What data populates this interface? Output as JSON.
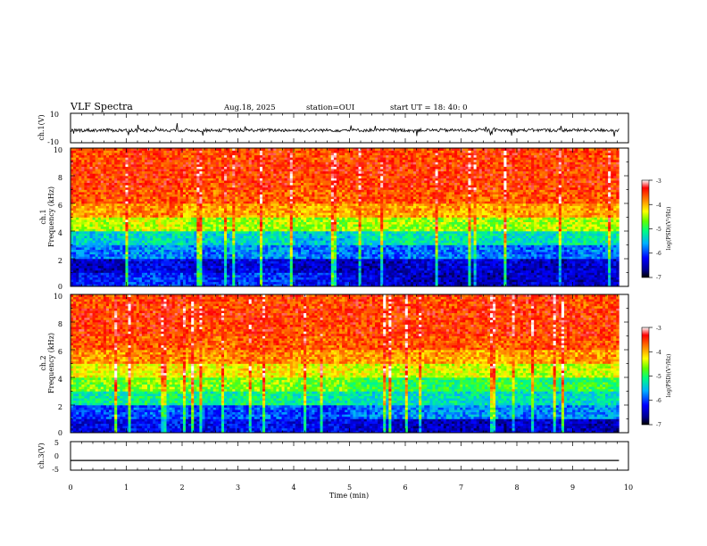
{
  "header": {
    "title": "VLF Spectra",
    "date": "Aug.18, 2025",
    "station": "station=OUI",
    "start": "start  UT =  18: 40: 0"
  },
  "chart_data": [
    {
      "type": "line",
      "panel": "ch1-waveform",
      "ylabel": "ch.1(V)",
      "ylim": [
        -10,
        10
      ],
      "yticks": [
        "10",
        "-10"
      ],
      "x": [
        0,
        1,
        2,
        3,
        4,
        5,
        6,
        7,
        8,
        9,
        9.83
      ],
      "series": [
        {
          "values": [
            -1.5,
            -1.5,
            -1.5,
            -1.5,
            -1.5,
            -1.5,
            -1.5,
            -1.5,
            -1.5,
            -1.5,
            -1.5
          ]
        }
      ]
    },
    {
      "type": "heatmap",
      "panel": "ch1-spectrogram",
      "ylabel": "ch.1\nFrequency (kHz)",
      "ylim": [
        0,
        10
      ],
      "yticks": [
        "0",
        "2",
        "4",
        "6",
        "8",
        "10"
      ],
      "xlim": [
        0,
        9.83
      ],
      "colorbar": {
        "label": "log(PSD)(V²/Hz)",
        "range": [
          -7,
          -3
        ],
        "ticks": [
          "-3",
          "-4",
          "-5",
          "-6",
          "-7"
        ]
      },
      "rows_freq_khz": [
        0.5,
        1.5,
        2.5,
        3.5,
        4.5,
        5.5,
        6.5,
        7.5,
        8.5,
        9.5
      ],
      "cols_min": [
        0.5,
        1.5,
        2.5,
        3.5,
        4.5,
        5.5,
        6.5,
        7.5,
        8.5,
        9.5
      ],
      "values": [
        [
          -6.2,
          -6.0,
          -6.1,
          -6.0,
          -6.2,
          -6.4,
          -6.5,
          -6.5,
          -6.4,
          -6.5
        ],
        [
          -6.5,
          -6.3,
          -6.4,
          -6.3,
          -6.5,
          -6.5,
          -6.4,
          -6.4,
          -6.5,
          -6.4
        ],
        [
          -5.8,
          -5.7,
          -5.8,
          -5.7,
          -5.8,
          -5.9,
          -5.8,
          -5.8,
          -5.9,
          -5.8
        ],
        [
          -5.4,
          -5.3,
          -5.4,
          -5.3,
          -5.5,
          -5.3,
          -5.2,
          -5.3,
          -5.3,
          -5.2
        ],
        [
          -4.5,
          -4.4,
          -4.6,
          -4.5,
          -4.6,
          -4.5,
          -4.6,
          -4.6,
          -4.5,
          -4.5
        ],
        [
          -3.9,
          -3.8,
          -4.0,
          -3.9,
          -4.0,
          -3.9,
          -3.9,
          -4.0,
          -3.9,
          -3.9
        ],
        [
          -3.6,
          -3.6,
          -3.7,
          -3.6,
          -3.7,
          -3.6,
          -3.6,
          -3.7,
          -3.6,
          -3.6
        ],
        [
          -3.5,
          -3.5,
          -3.6,
          -3.5,
          -3.6,
          -3.5,
          -3.5,
          -3.5,
          -3.5,
          -3.5
        ],
        [
          -3.5,
          -3.5,
          -3.5,
          -3.5,
          -3.5,
          -3.5,
          -3.5,
          -3.5,
          -3.5,
          -3.5
        ],
        [
          -3.6,
          -3.5,
          -3.6,
          -3.5,
          -3.6,
          -3.5,
          -3.6,
          -3.5,
          -3.5,
          -3.6
        ]
      ]
    },
    {
      "type": "heatmap",
      "panel": "ch2-spectrogram",
      "ylabel": "ch.2\nFrequency (kHz)",
      "ylim": [
        0,
        10
      ],
      "yticks": [
        "0",
        "2",
        "4",
        "6",
        "8",
        "10"
      ],
      "xlim": [
        0,
        9.83
      ],
      "colorbar": {
        "label": "log(PSD)(V²/Hz)",
        "range": [
          -7,
          -3
        ],
        "ticks": [
          "-3",
          "-4",
          "-5",
          "-6",
          "-7"
        ]
      },
      "rows_freq_khz": [
        0.5,
        1.5,
        2.5,
        3.5,
        4.5,
        5.5,
        6.5,
        7.5,
        8.5,
        9.5
      ],
      "cols_min": [
        0.5,
        1.5,
        2.5,
        3.5,
        4.5,
        5.5,
        6.5,
        7.5,
        8.5,
        9.5
      ],
      "values": [
        [
          -6.3,
          -6.2,
          -6.3,
          -6.2,
          -6.3,
          -6.4,
          -6.5,
          -6.5,
          -6.4,
          -6.5
        ],
        [
          -6.0,
          -5.9,
          -6.0,
          -5.9,
          -6.0,
          -5.8,
          -5.7,
          -5.7,
          -5.8,
          -5.7
        ],
        [
          -5.2,
          -5.1,
          -5.2,
          -5.1,
          -5.2,
          -5.3,
          -5.3,
          -5.3,
          -5.4,
          -5.3
        ],
        [
          -4.7,
          -4.6,
          -4.7,
          -4.6,
          -4.7,
          -4.9,
          -5.0,
          -4.9,
          -5.0,
          -4.9
        ],
        [
          -4.3,
          -4.2,
          -4.3,
          -4.2,
          -4.3,
          -4.4,
          -4.4,
          -4.4,
          -4.5,
          -4.4
        ],
        [
          -3.9,
          -3.8,
          -3.9,
          -3.8,
          -3.9,
          -3.9,
          -3.9,
          -4.0,
          -3.9,
          -3.9
        ],
        [
          -3.6,
          -3.6,
          -3.7,
          -3.6,
          -3.7,
          -3.6,
          -3.6,
          -3.7,
          -3.6,
          -3.6
        ],
        [
          -3.5,
          -3.5,
          -3.6,
          -3.5,
          -3.6,
          -3.5,
          -3.5,
          -3.5,
          -3.5,
          -3.5
        ],
        [
          -3.5,
          -3.5,
          -3.5,
          -3.5,
          -3.5,
          -3.5,
          -3.5,
          -3.5,
          -3.5,
          -3.5
        ],
        [
          -3.6,
          -3.5,
          -3.6,
          -3.5,
          -3.6,
          -3.5,
          -3.6,
          -3.5,
          -3.5,
          -3.6
        ]
      ]
    },
    {
      "type": "line",
      "panel": "ch3-waveform",
      "ylabel": "ch.3(V)",
      "ylim": [
        -5,
        5
      ],
      "yticks": [
        "5",
        "0",
        "-5"
      ],
      "x": [
        0,
        9.83
      ],
      "series": [
        {
          "values": [
            -1.6,
            -1.6
          ]
        }
      ]
    }
  ],
  "xaxis": {
    "label": "Time  (min)",
    "range": [
      0,
      10
    ],
    "ticks": [
      "0",
      "1",
      "2",
      "3",
      "4",
      "5",
      "6",
      "7",
      "8",
      "9",
      "10"
    ]
  }
}
